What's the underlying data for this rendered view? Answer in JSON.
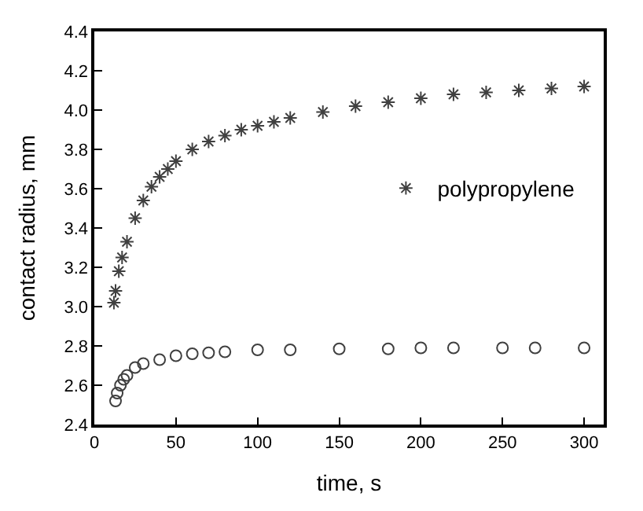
{
  "chart_data": {
    "type": "scatter",
    "xlabel": "time, s",
    "ylabel": "contact radius, mm",
    "xlim": [
      0,
      312
    ],
    "xticks": [
      0,
      50,
      100,
      150,
      200,
      250,
      300
    ],
    "ylim": [
      2.4,
      4.4
    ],
    "yticks": [
      2.4,
      2.6,
      2.8,
      {
        "value": 3,
        "label": "3.0"
      },
      3.2,
      3.4,
      3.6,
      3.8,
      {
        "value": 4,
        "label": "4.0"
      },
      4.2,
      4.4
    ],
    "legend": "right",
    "series": [
      {
        "name": "polypropylene",
        "color": "#404040",
        "marker": "cross",
        "x": [
          12,
          13,
          15,
          17,
          20,
          25,
          30,
          35,
          40,
          45,
          50,
          60,
          70,
          80,
          90,
          100,
          110,
          120,
          140,
          160,
          180,
          200,
          220,
          240,
          260,
          280,
          300
        ],
        "values": [
          3.02,
          3.08,
          3.18,
          3.25,
          3.33,
          3.45,
          3.54,
          3.61,
          3.66,
          3.7,
          3.74,
          3.8,
          3.84,
          3.87,
          3.9,
          3.92,
          3.94,
          3.96,
          3.99,
          4.02,
          4.04,
          4.06,
          4.08,
          4.09,
          4.1,
          4.11,
          4.12
        ]
      },
      {
        "color": "#404040",
        "marker": "circle",
        "x": [
          13,
          14,
          16,
          18,
          20,
          25,
          30,
          40,
          50,
          60,
          70,
          80,
          100,
          120,
          150,
          180,
          200,
          220,
          250,
          270,
          300
        ],
        "values": [
          2.52,
          2.56,
          2.6,
          2.63,
          2.65,
          2.69,
          2.71,
          2.73,
          2.75,
          2.76,
          2.765,
          2.77,
          2.78,
          2.78,
          2.785,
          2.785,
          2.79,
          2.79,
          2.79,
          2.79,
          2.79
        ]
      }
    ]
  }
}
